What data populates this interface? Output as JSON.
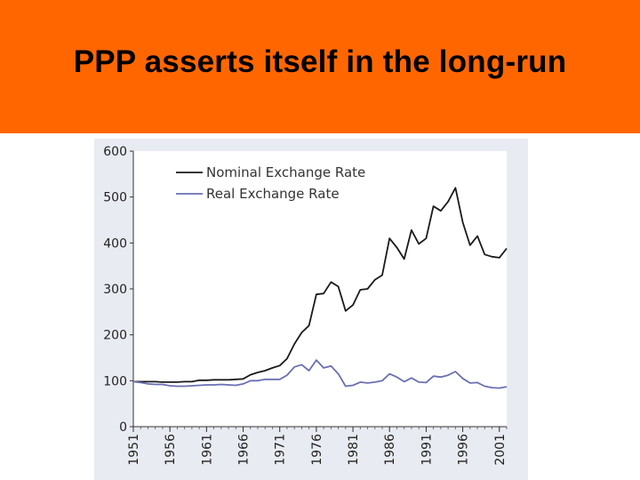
{
  "slide": {
    "title": "PPP asserts itself in the long-run",
    "accent_color": "#ff6600"
  },
  "chart_data": {
    "type": "line",
    "title": "",
    "xlabel": "",
    "ylabel": "",
    "ylim": [
      0,
      600
    ],
    "yticks": [
      "0",
      "100",
      "200",
      "300",
      "400",
      "500",
      "600"
    ],
    "xticks": [
      "1951",
      "1956",
      "1961",
      "1966",
      "1971",
      "1976",
      "1981",
      "1986",
      "1991",
      "1996",
      "2001"
    ],
    "xlim": [
      1951,
      2002
    ],
    "grid": false,
    "legend_position": "top-left",
    "series": [
      {
        "name": "Nominal Exchange Rate",
        "color": "#1a1a1a",
        "x": [
          1951,
          1952,
          1953,
          1954,
          1955,
          1956,
          1957,
          1958,
          1959,
          1960,
          1961,
          1962,
          1963,
          1964,
          1965,
          1966,
          1967,
          1968,
          1969,
          1970,
          1971,
          1972,
          1973,
          1974,
          1975,
          1976,
          1977,
          1978,
          1979,
          1980,
          1981,
          1982,
          1983,
          1984,
          1985,
          1986,
          1987,
          1988,
          1989,
          1990,
          1991,
          1992,
          1993,
          1994,
          1995,
          1996,
          1997,
          1998,
          1999,
          2000,
          2001,
          2002
        ],
        "values": [
          98,
          98,
          98,
          98,
          97,
          97,
          97,
          98,
          98,
          101,
          101,
          102,
          102,
          102,
          103,
          104,
          113,
          118,
          122,
          128,
          133,
          148,
          180,
          205,
          220,
          288,
          290,
          315,
          305,
          252,
          265,
          298,
          300,
          320,
          330,
          410,
          390,
          365,
          428,
          398,
          410,
          480,
          470,
          490,
          520,
          445,
          395,
          415,
          375,
          370,
          368,
          388
        ]
      },
      {
        "name": "Real Exchange Rate",
        "color": "#6a6fb3",
        "x": [
          1951,
          1952,
          1953,
          1954,
          1955,
          1956,
          1957,
          1958,
          1959,
          1960,
          1961,
          1962,
          1963,
          1964,
          1965,
          1966,
          1967,
          1968,
          1969,
          1970,
          1971,
          1972,
          1973,
          1974,
          1975,
          1976,
          1977,
          1978,
          1979,
          1980,
          1981,
          1982,
          1983,
          1984,
          1985,
          1986,
          1987,
          1988,
          1989,
          1990,
          1991,
          1992,
          1993,
          1994,
          1995,
          1996,
          1997,
          1998,
          1999,
          2000,
          2001,
          2002
        ],
        "values": [
          98,
          96,
          93,
          92,
          92,
          89,
          88,
          88,
          89,
          90,
          91,
          91,
          92,
          91,
          90,
          93,
          100,
          100,
          103,
          103,
          103,
          112,
          130,
          135,
          122,
          145,
          128,
          132,
          115,
          88,
          90,
          97,
          95,
          97,
          100,
          115,
          108,
          98,
          106,
          97,
          96,
          110,
          108,
          112,
          120,
          105,
          95,
          96,
          88,
          85,
          84,
          87
        ]
      }
    ]
  }
}
